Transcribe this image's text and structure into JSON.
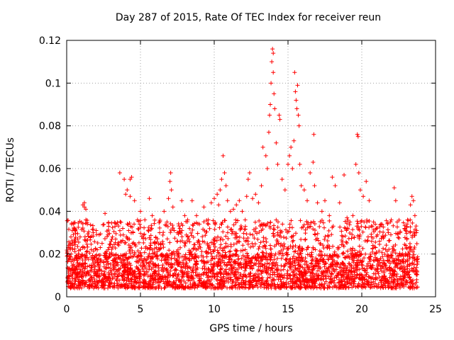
{
  "chart_data": {
    "type": "scatter",
    "title": "Day 287 of 2015, Rate Of TEC Index for receiver reun",
    "xlabel": "GPS time / hours",
    "ylabel": "ROTI / TECUs",
    "xlim": [
      0,
      25
    ],
    "ylim": [
      0,
      0.12
    ],
    "x_ticks": [
      "0",
      "5",
      "10",
      "15",
      "20",
      "25"
    ],
    "y_ticks": [
      "0",
      "0.02",
      "0.04",
      "0.06",
      "0.08",
      "0.1",
      "0.12"
    ],
    "grid": true,
    "marker": "+",
    "color": "#ff0000",
    "series": [
      {
        "points": [
          [
            0.05,
            0.021
          ],
          [
            0.1,
            0.023
          ],
          [
            0.2,
            0.018
          ],
          [
            0.3,
            0.02
          ],
          [
            0.5,
            0.017
          ],
          [
            0.8,
            0.02
          ],
          [
            1.1,
            0.043
          ],
          [
            1.2,
            0.044
          ],
          [
            1.2,
            0.042
          ],
          [
            1.3,
            0.041
          ],
          [
            1.3,
            0.036
          ],
          [
            1.4,
            0.034
          ],
          [
            1.6,
            0.028
          ],
          [
            1.8,
            0.03
          ],
          [
            2.0,
            0.031
          ],
          [
            2.2,
            0.029
          ],
          [
            2.4,
            0.025
          ],
          [
            2.6,
            0.039
          ],
          [
            2.8,
            0.022
          ],
          [
            3.1,
            0.028
          ],
          [
            3.4,
            0.034
          ],
          [
            3.6,
            0.058
          ],
          [
            3.8,
            0.032
          ],
          [
            3.9,
            0.055
          ],
          [
            4.0,
            0.048
          ],
          [
            4.1,
            0.05
          ],
          [
            4.2,
            0.031
          ],
          [
            4.3,
            0.047
          ],
          [
            4.3,
            0.055
          ],
          [
            4.4,
            0.056
          ],
          [
            4.5,
            0.03
          ],
          [
            4.6,
            0.045
          ],
          [
            4.8,
            0.036
          ],
          [
            5.0,
            0.04
          ],
          [
            5.3,
            0.036
          ],
          [
            5.6,
            0.046
          ],
          [
            5.8,
            0.038
          ],
          [
            6.0,
            0.025
          ],
          [
            6.3,
            0.03
          ],
          [
            6.6,
            0.04
          ],
          [
            6.8,
            0.035
          ],
          [
            6.9,
            0.046
          ],
          [
            7.0,
            0.054
          ],
          [
            7.05,
            0.058
          ],
          [
            7.1,
            0.05
          ],
          [
            7.2,
            0.042
          ],
          [
            7.5,
            0.03
          ],
          [
            7.8,
            0.045
          ],
          [
            8.0,
            0.038
          ],
          [
            8.2,
            0.036
          ],
          [
            8.5,
            0.045
          ],
          [
            8.8,
            0.038
          ],
          [
            9.0,
            0.034
          ],
          [
            9.3,
            0.042
          ],
          [
            9.6,
            0.036
          ],
          [
            9.8,
            0.044
          ],
          [
            10.0,
            0.046
          ],
          [
            10.2,
            0.048
          ],
          [
            10.3,
            0.043
          ],
          [
            10.4,
            0.05
          ],
          [
            10.5,
            0.055
          ],
          [
            10.6,
            0.066
          ],
          [
            10.7,
            0.058
          ],
          [
            10.8,
            0.052
          ],
          [
            10.9,
            0.045
          ],
          [
            11.1,
            0.04
          ],
          [
            11.3,
            0.041
          ],
          [
            11.5,
            0.043
          ],
          [
            11.7,
            0.045
          ],
          [
            11.9,
            0.04
          ],
          [
            12.1,
            0.036
          ],
          [
            12.2,
            0.047
          ],
          [
            12.3,
            0.055
          ],
          [
            12.4,
            0.058
          ],
          [
            12.6,
            0.046
          ],
          [
            12.8,
            0.048
          ],
          [
            13.0,
            0.044
          ],
          [
            13.2,
            0.052
          ],
          [
            13.3,
            0.07
          ],
          [
            13.5,
            0.066
          ],
          [
            13.6,
            0.06
          ],
          [
            13.7,
            0.077
          ],
          [
            13.75,
            0.085
          ],
          [
            13.8,
            0.09
          ],
          [
            13.85,
            0.1
          ],
          [
            13.9,
            0.11
          ],
          [
            13.95,
            0.116
          ],
          [
            14.0,
            0.114
          ],
          [
            14.0,
            0.105
          ],
          [
            14.05,
            0.095
          ],
          [
            14.1,
            0.088
          ],
          [
            14.2,
            0.072
          ],
          [
            14.3,
            0.062
          ],
          [
            14.4,
            0.085
          ],
          [
            14.45,
            0.083
          ],
          [
            14.6,
            0.055
          ],
          [
            14.8,
            0.05
          ],
          [
            15.0,
            0.062
          ],
          [
            15.1,
            0.066
          ],
          [
            15.2,
            0.07
          ],
          [
            15.3,
            0.06
          ],
          [
            15.4,
            0.073
          ],
          [
            15.45,
            0.105
          ],
          [
            15.5,
            0.096
          ],
          [
            15.55,
            0.092
          ],
          [
            15.6,
            0.088
          ],
          [
            15.65,
            0.099
          ],
          [
            15.7,
            0.085
          ],
          [
            15.75,
            0.08
          ],
          [
            15.8,
            0.062
          ],
          [
            15.9,
            0.052
          ],
          [
            16.1,
            0.05
          ],
          [
            16.3,
            0.045
          ],
          [
            16.5,
            0.058
          ],
          [
            16.7,
            0.063
          ],
          [
            16.75,
            0.076
          ],
          [
            16.8,
            0.052
          ],
          [
            17.0,
            0.044
          ],
          [
            17.3,
            0.04
          ],
          [
            17.5,
            0.045
          ],
          [
            17.8,
            0.038
          ],
          [
            18.0,
            0.056
          ],
          [
            18.2,
            0.052
          ],
          [
            18.5,
            0.044
          ],
          [
            18.8,
            0.057
          ],
          [
            19.0,
            0.037
          ],
          [
            19.2,
            0.035
          ],
          [
            19.4,
            0.038
          ],
          [
            19.6,
            0.062
          ],
          [
            19.7,
            0.076
          ],
          [
            19.75,
            0.075
          ],
          [
            19.8,
            0.058
          ],
          [
            19.9,
            0.05
          ],
          [
            20.1,
            0.047
          ],
          [
            20.3,
            0.054
          ],
          [
            20.5,
            0.045
          ],
          [
            20.8,
            0.035
          ],
          [
            21.0,
            0.032
          ],
          [
            21.2,
            0.026
          ],
          [
            21.5,
            0.028
          ],
          [
            21.8,
            0.03
          ],
          [
            22.0,
            0.036
          ],
          [
            22.2,
            0.051
          ],
          [
            22.3,
            0.045
          ],
          [
            22.4,
            0.035
          ],
          [
            22.6,
            0.03
          ],
          [
            22.9,
            0.032
          ],
          [
            23.1,
            0.036
          ],
          [
            23.3,
            0.043
          ],
          [
            23.4,
            0.047
          ],
          [
            23.5,
            0.045
          ],
          [
            23.6,
            0.038
          ],
          [
            23.7,
            0.03
          ]
        ],
        "dense_band": {
          "x_range": [
            0,
            23.8
          ],
          "y_range": [
            0.004,
            0.02
          ]
        }
      }
    ]
  }
}
